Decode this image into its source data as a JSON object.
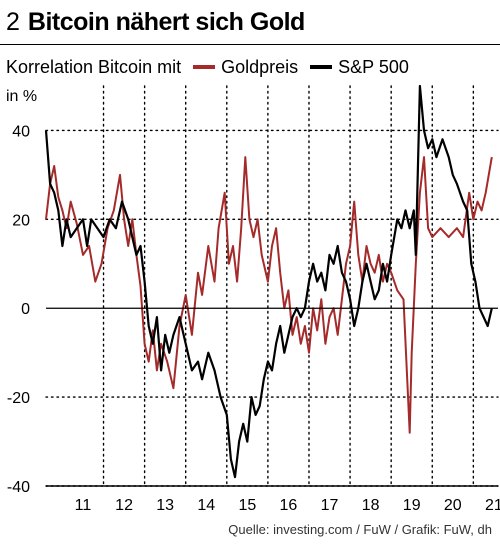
{
  "title": {
    "number": "2",
    "text": "Bitcoin nähert sich Gold"
  },
  "legend": {
    "label": "Korrelation Bitcoin mit",
    "items": [
      {
        "name": "Goldpreis",
        "color": "#a52b2b"
      },
      {
        "name": "S&P 500",
        "color": "#000000"
      }
    ]
  },
  "unit": "in %",
  "source": "Quelle: investing.com / FuW / Grafik: FuW, dh",
  "chart_data": {
    "type": "line",
    "ylim": [
      -40,
      50
    ],
    "yticks": [
      40,
      20,
      0,
      -20,
      -40
    ],
    "xticks": [
      "11",
      "12",
      "13",
      "14",
      "15",
      "16",
      "17",
      "18",
      "19",
      "20",
      "21"
    ],
    "grid": true,
    "legend_position": "top",
    "series": [
      {
        "name": "Goldpreis",
        "color": "#a52b2b",
        "points": [
          [
            2010.6,
            20
          ],
          [
            2010.7,
            28
          ],
          [
            2010.8,
            32
          ],
          [
            2010.9,
            25
          ],
          [
            2011.0,
            22
          ],
          [
            2011.1,
            18
          ],
          [
            2011.2,
            24
          ],
          [
            2011.35,
            19
          ],
          [
            2011.5,
            12
          ],
          [
            2011.65,
            14
          ],
          [
            2011.8,
            6
          ],
          [
            2011.95,
            10
          ],
          [
            2012.1,
            18
          ],
          [
            2012.25,
            22
          ],
          [
            2012.4,
            30
          ],
          [
            2012.5,
            20
          ],
          [
            2012.6,
            14
          ],
          [
            2012.7,
            20
          ],
          [
            2012.8,
            12
          ],
          [
            2012.9,
            5
          ],
          [
            2013.0,
            -8
          ],
          [
            2013.1,
            -12
          ],
          [
            2013.2,
            -5
          ],
          [
            2013.3,
            -14
          ],
          [
            2013.4,
            -8
          ],
          [
            2013.55,
            -12
          ],
          [
            2013.7,
            -18
          ],
          [
            2013.85,
            -4
          ],
          [
            2014.0,
            3
          ],
          [
            2014.15,
            -6
          ],
          [
            2014.3,
            8
          ],
          [
            2014.4,
            3
          ],
          [
            2014.55,
            14
          ],
          [
            2014.7,
            6
          ],
          [
            2014.8,
            18
          ],
          [
            2014.95,
            26
          ],
          [
            2015.05,
            10
          ],
          [
            2015.15,
            14
          ],
          [
            2015.25,
            6
          ],
          [
            2015.35,
            18
          ],
          [
            2015.45,
            34
          ],
          [
            2015.55,
            20
          ],
          [
            2015.65,
            16
          ],
          [
            2015.75,
            20
          ],
          [
            2015.85,
            12
          ],
          [
            2016.0,
            6
          ],
          [
            2016.1,
            14
          ],
          [
            2016.2,
            18
          ],
          [
            2016.3,
            8
          ],
          [
            2016.4,
            0
          ],
          [
            2016.5,
            4
          ],
          [
            2016.6,
            -6
          ],
          [
            2016.7,
            -2
          ],
          [
            2016.8,
            -8
          ],
          [
            2016.9,
            -4
          ],
          [
            2017.0,
            -10
          ],
          [
            2017.1,
            0
          ],
          [
            2017.2,
            -5
          ],
          [
            2017.3,
            2
          ],
          [
            2017.4,
            -8
          ],
          [
            2017.5,
            -2
          ],
          [
            2017.6,
            0
          ],
          [
            2017.7,
            -6
          ],
          [
            2017.8,
            2
          ],
          [
            2017.9,
            10
          ],
          [
            2018.0,
            14
          ],
          [
            2018.1,
            24
          ],
          [
            2018.2,
            12
          ],
          [
            2018.3,
            6
          ],
          [
            2018.4,
            14
          ],
          [
            2018.5,
            10
          ],
          [
            2018.6,
            8
          ],
          [
            2018.7,
            12
          ],
          [
            2018.8,
            6
          ],
          [
            2018.9,
            10
          ],
          [
            2019.0,
            8
          ],
          [
            2019.15,
            4
          ],
          [
            2019.3,
            2
          ],
          [
            2019.45,
            -28
          ],
          [
            2019.5,
            -10
          ],
          [
            2019.6,
            10
          ],
          [
            2019.7,
            26
          ],
          [
            2019.8,
            34
          ],
          [
            2019.9,
            18
          ],
          [
            2020.0,
            16
          ],
          [
            2020.2,
            18
          ],
          [
            2020.4,
            16
          ],
          [
            2020.6,
            18
          ],
          [
            2020.75,
            16
          ],
          [
            2020.9,
            26
          ],
          [
            2021.0,
            20
          ],
          [
            2021.1,
            24
          ],
          [
            2021.2,
            22
          ],
          [
            2021.3,
            26
          ],
          [
            2021.45,
            34
          ]
        ]
      },
      {
        "name": "S&P 500",
        "color": "#000000",
        "points": [
          [
            2010.6,
            40
          ],
          [
            2010.7,
            28
          ],
          [
            2010.8,
            26
          ],
          [
            2010.9,
            22
          ],
          [
            2011.0,
            14
          ],
          [
            2011.1,
            20
          ],
          [
            2011.2,
            16
          ],
          [
            2011.35,
            18
          ],
          [
            2011.5,
            20
          ],
          [
            2011.6,
            14
          ],
          [
            2011.7,
            20
          ],
          [
            2011.85,
            18
          ],
          [
            2012.0,
            16
          ],
          [
            2012.15,
            20
          ],
          [
            2012.3,
            18
          ],
          [
            2012.45,
            24
          ],
          [
            2012.6,
            20
          ],
          [
            2012.8,
            12
          ],
          [
            2012.9,
            14
          ],
          [
            2013.0,
            6
          ],
          [
            2013.1,
            -4
          ],
          [
            2013.2,
            -8
          ],
          [
            2013.3,
            -2
          ],
          [
            2013.4,
            -14
          ],
          [
            2013.5,
            -6
          ],
          [
            2013.6,
            -10
          ],
          [
            2013.7,
            -6
          ],
          [
            2013.85,
            -2
          ],
          [
            2014.0,
            -8
          ],
          [
            2014.15,
            -14
          ],
          [
            2014.3,
            -12
          ],
          [
            2014.4,
            -16
          ],
          [
            2014.55,
            -10
          ],
          [
            2014.7,
            -14
          ],
          [
            2014.85,
            -20
          ],
          [
            2015.0,
            -24
          ],
          [
            2015.1,
            -34
          ],
          [
            2015.2,
            -38
          ],
          [
            2015.3,
            -30
          ],
          [
            2015.4,
            -26
          ],
          [
            2015.5,
            -30
          ],
          [
            2015.6,
            -20
          ],
          [
            2015.7,
            -24
          ],
          [
            2015.8,
            -22
          ],
          [
            2015.9,
            -16
          ],
          [
            2016.0,
            -12
          ],
          [
            2016.1,
            -14
          ],
          [
            2016.2,
            -8
          ],
          [
            2016.3,
            -4
          ],
          [
            2016.4,
            -10
          ],
          [
            2016.5,
            -6
          ],
          [
            2016.6,
            -2
          ],
          [
            2016.7,
            0
          ],
          [
            2016.8,
            -2
          ],
          [
            2016.9,
            0
          ],
          [
            2017.0,
            6
          ],
          [
            2017.1,
            10
          ],
          [
            2017.2,
            6
          ],
          [
            2017.3,
            8
          ],
          [
            2017.4,
            4
          ],
          [
            2017.5,
            12
          ],
          [
            2017.6,
            10
          ],
          [
            2017.7,
            14
          ],
          [
            2017.8,
            8
          ],
          [
            2017.9,
            6
          ],
          [
            2018.0,
            2
          ],
          [
            2018.1,
            -4
          ],
          [
            2018.2,
            0
          ],
          [
            2018.3,
            6
          ],
          [
            2018.4,
            10
          ],
          [
            2018.5,
            6
          ],
          [
            2018.6,
            2
          ],
          [
            2018.7,
            4
          ],
          [
            2018.8,
            10
          ],
          [
            2018.9,
            6
          ],
          [
            2019.0,
            12
          ],
          [
            2019.15,
            20
          ],
          [
            2019.25,
            18
          ],
          [
            2019.35,
            22
          ],
          [
            2019.45,
            18
          ],
          [
            2019.55,
            22
          ],
          [
            2019.6,
            12
          ],
          [
            2019.7,
            50
          ],
          [
            2019.8,
            40
          ],
          [
            2019.9,
            36
          ],
          [
            2020.0,
            38
          ],
          [
            2020.1,
            34
          ],
          [
            2020.25,
            38
          ],
          [
            2020.4,
            34
          ],
          [
            2020.5,
            30
          ],
          [
            2020.6,
            28
          ],
          [
            2020.75,
            24
          ],
          [
            2020.85,
            22
          ],
          [
            2020.95,
            10
          ],
          [
            2021.05,
            6
          ],
          [
            2021.15,
            0
          ],
          [
            2021.25,
            -2
          ],
          [
            2021.35,
            -4
          ],
          [
            2021.45,
            0
          ]
        ]
      }
    ]
  }
}
